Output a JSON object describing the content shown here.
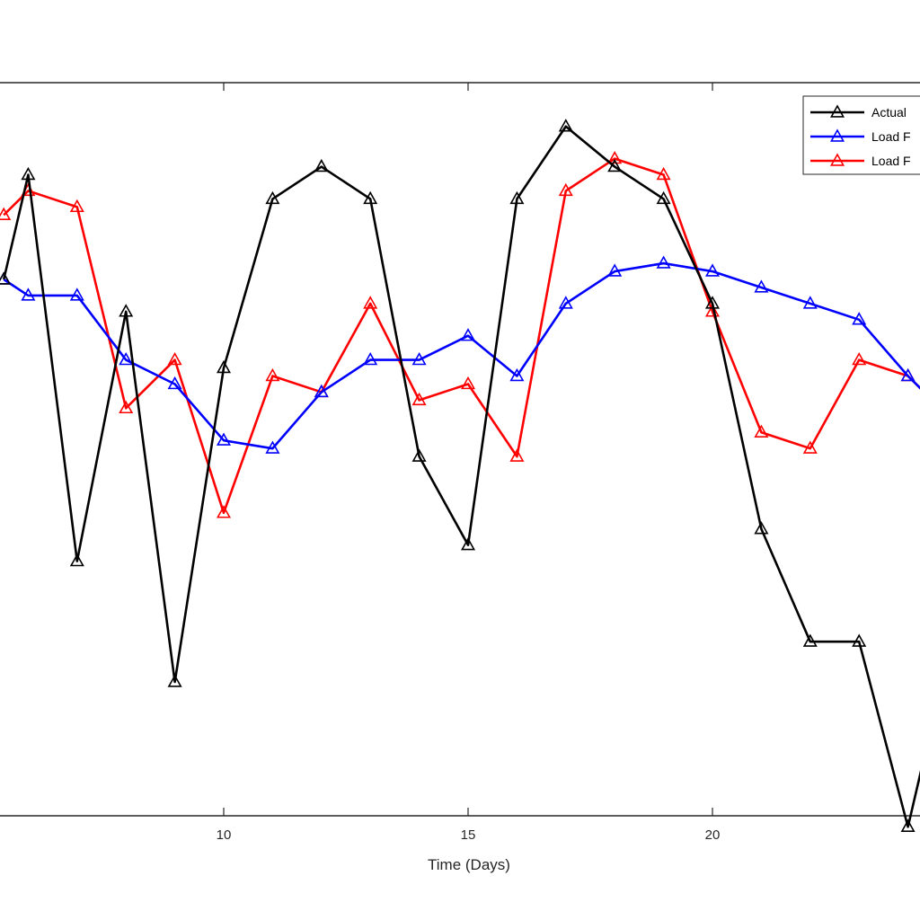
{
  "chart_data": {
    "type": "line",
    "xlabel": "Time (Days)",
    "ylabel": "",
    "xlim": [
      5.5,
      24.5
    ],
    "ylim": [
      -5,
      6
    ],
    "x_ticks": [
      10,
      15,
      20
    ],
    "x_tick_labels": [
      "10",
      "15",
      "20"
    ],
    "grid": false,
    "legend_position": "top-right",
    "marker": "triangle",
    "series": [
      {
        "name": "Actual",
        "color": "#000000",
        "x": [
          5.5,
          6,
          7,
          8,
          9,
          10,
          11,
          12,
          13,
          14,
          15,
          16,
          17,
          18,
          19,
          20,
          21,
          22,
          23,
          24,
          24.5
        ],
        "values": [
          2.5,
          3.8,
          -1.0,
          2.1,
          -2.5,
          1.4,
          3.5,
          3.9,
          3.5,
          0.3,
          -0.8,
          3.5,
          4.4,
          3.9,
          3.5,
          2.2,
          -0.6,
          -2.0,
          -2.0,
          -4.3,
          -3.0
        ]
      },
      {
        "name": "Load F",
        "color": "#0000ff",
        "x": [
          5.5,
          6,
          7,
          8,
          9,
          10,
          11,
          12,
          13,
          14,
          15,
          16,
          17,
          18,
          19,
          20,
          21,
          22,
          23,
          24,
          24.5
        ],
        "values": [
          2.5,
          2.3,
          2.3,
          1.5,
          1.2,
          0.5,
          0.4,
          1.1,
          1.5,
          1.5,
          1.8,
          1.3,
          2.2,
          2.6,
          2.7,
          2.6,
          2.4,
          2.2,
          2.0,
          1.3,
          1.0
        ]
      },
      {
        "name": "Load F",
        "color": "#ff0000",
        "x": [
          5.5,
          6,
          7,
          8,
          9,
          10,
          11,
          12,
          13,
          14,
          15,
          16,
          17,
          18,
          19,
          20,
          21,
          22,
          23,
          24,
          24.5
        ],
        "values": [
          3.3,
          3.6,
          3.4,
          0.9,
          1.5,
          -0.4,
          1.3,
          1.1,
          2.2,
          1.0,
          1.2,
          0.3,
          3.6,
          4.0,
          3.8,
          2.1,
          0.6,
          0.4,
          1.5,
          1.3,
          1.0
        ]
      }
    ]
  }
}
